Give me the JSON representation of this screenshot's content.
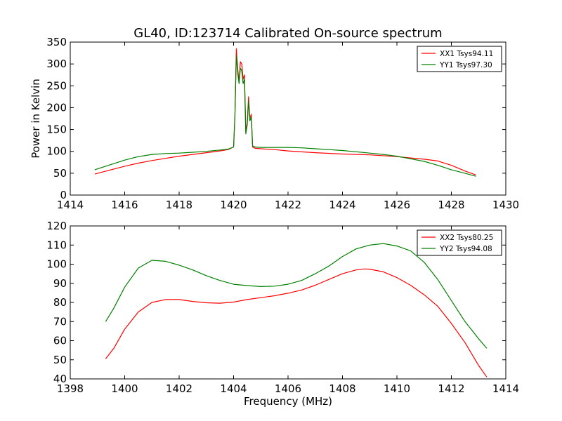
{
  "figure": {
    "title": "GL40, ID:123714 Calibrated On-source spectrum"
  },
  "chart_data": [
    {
      "type": "line",
      "title": "GL40, ID:123714 Calibrated On-source spectrum",
      "xlabel": "",
      "ylabel": "Power in Kelvin",
      "xlim": [
        1414,
        1430
      ],
      "ylim": [
        0,
        350
      ],
      "xticks": [
        1414,
        1416,
        1418,
        1420,
        1422,
        1424,
        1426,
        1428,
        1430
      ],
      "yticks": [
        0,
        50,
        100,
        150,
        200,
        250,
        300,
        350
      ],
      "legend_position": "top-right",
      "grid": false,
      "series": [
        {
          "name": "XX1 Tsys94.11",
          "color": "#ff0000",
          "points": [
            [
              1414.9,
              48
            ],
            [
              1415.5,
              58
            ],
            [
              1416,
              66
            ],
            [
              1416.5,
              73
            ],
            [
              1417,
              79
            ],
            [
              1417.5,
              84
            ],
            [
              1418,
              89
            ],
            [
              1418.5,
              93
            ],
            [
              1419,
              97
            ],
            [
              1419.5,
              101
            ],
            [
              1419.8,
              104
            ],
            [
              1420.0,
              110
            ],
            [
              1420.05,
              180
            ],
            [
              1420.1,
              335
            ],
            [
              1420.15,
              290
            ],
            [
              1420.2,
              260
            ],
            [
              1420.25,
              305
            ],
            [
              1420.3,
              300
            ],
            [
              1420.35,
              265
            ],
            [
              1420.4,
              275
            ],
            [
              1420.45,
              145
            ],
            [
              1420.5,
              165
            ],
            [
              1420.55,
              225
            ],
            [
              1420.6,
              175
            ],
            [
              1420.65,
              185
            ],
            [
              1420.7,
              110
            ],
            [
              1420.8,
              107
            ],
            [
              1421,
              106
            ],
            [
              1421.5,
              104
            ],
            [
              1422,
              101
            ],
            [
              1423,
              97
            ],
            [
              1424,
              94
            ],
            [
              1425,
              92
            ],
            [
              1426,
              88
            ],
            [
              1426.5,
              85
            ],
            [
              1427,
              82
            ],
            [
              1427.5,
              78
            ],
            [
              1428,
              68
            ],
            [
              1428.5,
              55
            ],
            [
              1428.9,
              46
            ]
          ]
        },
        {
          "name": "YY1 Tsys97.30",
          "color": "#008000",
          "points": [
            [
              1414.9,
              58
            ],
            [
              1415.5,
              70
            ],
            [
              1416,
              80
            ],
            [
              1416.5,
              88
            ],
            [
              1417,
              93
            ],
            [
              1417.5,
              95
            ],
            [
              1418,
              96
            ],
            [
              1418.5,
              98
            ],
            [
              1419,
              100
            ],
            [
              1419.5,
              103
            ],
            [
              1419.8,
              105
            ],
            [
              1420.0,
              110
            ],
            [
              1420.05,
              180
            ],
            [
              1420.1,
              320
            ],
            [
              1420.15,
              280
            ],
            [
              1420.2,
              255
            ],
            [
              1420.25,
              290
            ],
            [
              1420.3,
              285
            ],
            [
              1420.35,
              255
            ],
            [
              1420.4,
              265
            ],
            [
              1420.45,
              140
            ],
            [
              1420.5,
              160
            ],
            [
              1420.55,
              215
            ],
            [
              1420.6,
              170
            ],
            [
              1420.65,
              178
            ],
            [
              1420.7,
              112
            ],
            [
              1420.8,
              110
            ],
            [
              1421,
              109
            ],
            [
              1421.5,
              109
            ],
            [
              1422,
              109
            ],
            [
              1422.5,
              108
            ],
            [
              1423,
              106
            ],
            [
              1423.5,
              104
            ],
            [
              1424,
              102
            ],
            [
              1424.5,
              99
            ],
            [
              1425,
              96
            ],
            [
              1425.5,
              93
            ],
            [
              1426,
              89
            ],
            [
              1426.5,
              83
            ],
            [
              1427,
              77
            ],
            [
              1427.5,
              68
            ],
            [
              1428,
              58
            ],
            [
              1428.5,
              50
            ],
            [
              1428.9,
              43
            ]
          ]
        }
      ]
    },
    {
      "type": "line",
      "title": "",
      "xlabel": "Frequency (MHz)",
      "ylabel": "",
      "xlim": [
        1398,
        1414
      ],
      "ylim": [
        40,
        120
      ],
      "xticks": [
        1398,
        1400,
        1402,
        1404,
        1406,
        1408,
        1410,
        1412,
        1414
      ],
      "yticks": [
        40,
        50,
        60,
        70,
        80,
        90,
        100,
        110,
        120
      ],
      "legend_position": "top-right",
      "grid": false,
      "series": [
        {
          "name": "XX2 Tsys80.25",
          "color": "#ff0000",
          "points": [
            [
              1399.3,
              50.5
            ],
            [
              1399.6,
              56
            ],
            [
              1400,
              66
            ],
            [
              1400.5,
              75
            ],
            [
              1401,
              80
            ],
            [
              1401.5,
              81.5
            ],
            [
              1402,
              81.5
            ],
            [
              1402.5,
              80.5
            ],
            [
              1403,
              79.8
            ],
            [
              1403.5,
              79.6
            ],
            [
              1404,
              80.2
            ],
            [
              1404.5,
              81.5
            ],
            [
              1405,
              82.5
            ],
            [
              1405.5,
              83.5
            ],
            [
              1406,
              84.8
            ],
            [
              1406.5,
              86.5
            ],
            [
              1407,
              89
            ],
            [
              1407.5,
              92
            ],
            [
              1408,
              95
            ],
            [
              1408.5,
              97
            ],
            [
              1408.8,
              97.5
            ],
            [
              1409,
              97.4
            ],
            [
              1409.5,
              96
            ],
            [
              1410,
              93
            ],
            [
              1410.5,
              89
            ],
            [
              1411,
              84
            ],
            [
              1411.5,
              78
            ],
            [
              1412,
              69
            ],
            [
              1412.5,
              59
            ],
            [
              1413,
              47
            ],
            [
              1413.3,
              41
            ]
          ]
        },
        {
          "name": "YY2 Tsys94.08",
          "color": "#008000",
          "points": [
            [
              1399.3,
              70
            ],
            [
              1399.6,
              77
            ],
            [
              1400,
              88
            ],
            [
              1400.5,
              98
            ],
            [
              1401,
              102
            ],
            [
              1401.5,
              101.5
            ],
            [
              1402,
              99.5
            ],
            [
              1402.5,
              97
            ],
            [
              1403,
              94
            ],
            [
              1403.5,
              91.5
            ],
            [
              1404,
              89.5
            ],
            [
              1404.5,
              88.8
            ],
            [
              1405,
              88.3
            ],
            [
              1405.5,
              88.5
            ],
            [
              1406,
              89.5
            ],
            [
              1406.5,
              91.5
            ],
            [
              1407,
              95
            ],
            [
              1407.5,
              99
            ],
            [
              1408,
              104
            ],
            [
              1408.5,
              108
            ],
            [
              1409,
              110
            ],
            [
              1409.5,
              110.8
            ],
            [
              1410,
              109.5
            ],
            [
              1410.5,
              107
            ],
            [
              1411,
              101
            ],
            [
              1411.5,
              92
            ],
            [
              1412,
              81
            ],
            [
              1412.5,
              70
            ],
            [
              1413,
              61
            ],
            [
              1413.3,
              56
            ]
          ]
        }
      ]
    }
  ]
}
